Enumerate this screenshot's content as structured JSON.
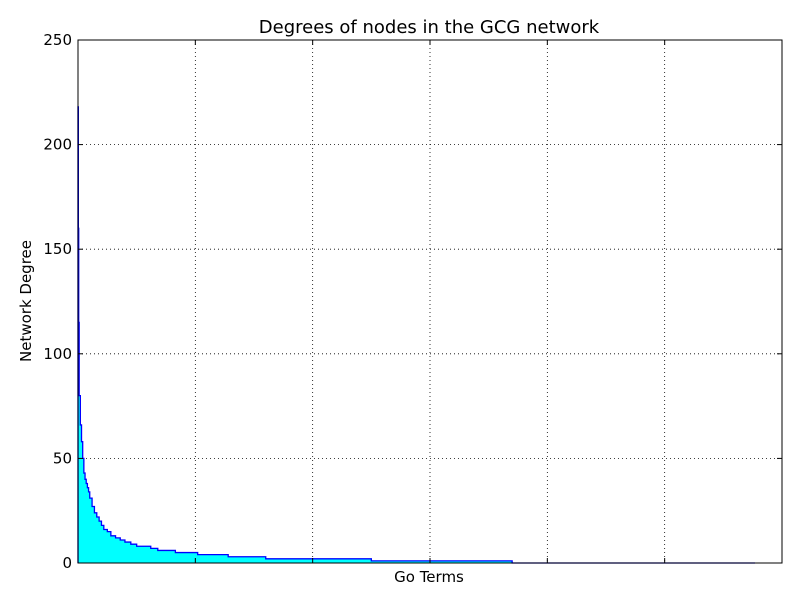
{
  "chart_data": {
    "type": "area",
    "title": "Degrees of nodes in the GCG network",
    "xlabel": "Go Terms",
    "ylabel": "Network Degree",
    "ylim": [
      0,
      250
    ],
    "yticks": [
      0,
      50,
      100,
      150,
      200,
      250
    ],
    "xlim": [
      0,
      600
    ],
    "x_tick_labels_shown": false,
    "grid": true,
    "fill_color": "#00FFFF",
    "line_color": "#0000FF",
    "series": [
      {
        "x": [
          0,
          0.3,
          0.6,
          1,
          2,
          3,
          4,
          5,
          6,
          7,
          8,
          9,
          10,
          12,
          14,
          16,
          18,
          20,
          22,
          25,
          28,
          32,
          36,
          40,
          45,
          50,
          56,
          62,
          68,
          75,
          83,
          92,
          102,
          112,
          128,
          140,
          160,
          175,
          250,
          370,
          577
        ],
        "values": [
          218,
          160,
          115,
          80,
          66,
          58,
          50,
          43,
          40,
          38,
          36,
          34,
          31,
          27,
          24,
          22,
          20,
          18,
          16,
          15,
          13,
          12,
          11,
          10,
          9,
          8,
          8,
          7,
          6,
          6,
          5,
          5,
          4,
          4,
          3,
          3,
          2,
          2,
          1,
          0,
          0
        ]
      }
    ]
  }
}
